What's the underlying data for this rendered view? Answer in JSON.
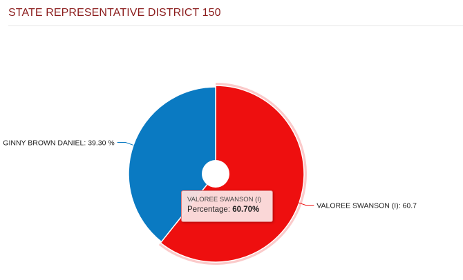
{
  "header": {
    "title": "STATE REPRESENTATIVE DISTRICT 150"
  },
  "chart_data": {
    "type": "pie",
    "title": "STATE REPRESENTATIVE DISTRICT 150",
    "series": [
      {
        "name": "VALOREE SWANSON (I)",
        "value": 60.7,
        "color": "#ee0f0f",
        "label": "VALOREE SWANSON (I): 60.7"
      },
      {
        "name": "GINNY BROWN DANIEL",
        "value": 39.3,
        "color": "#0a7ac2",
        "label": "GINNY BROWN DANIEL: 39.30 %"
      }
    ],
    "hovered_slice": "VALOREE SWANSON (I)"
  },
  "tooltip": {
    "name": "VALOREE SWANSON (I)",
    "metric_label": "Percentage: ",
    "metric_value": "60.70%"
  }
}
